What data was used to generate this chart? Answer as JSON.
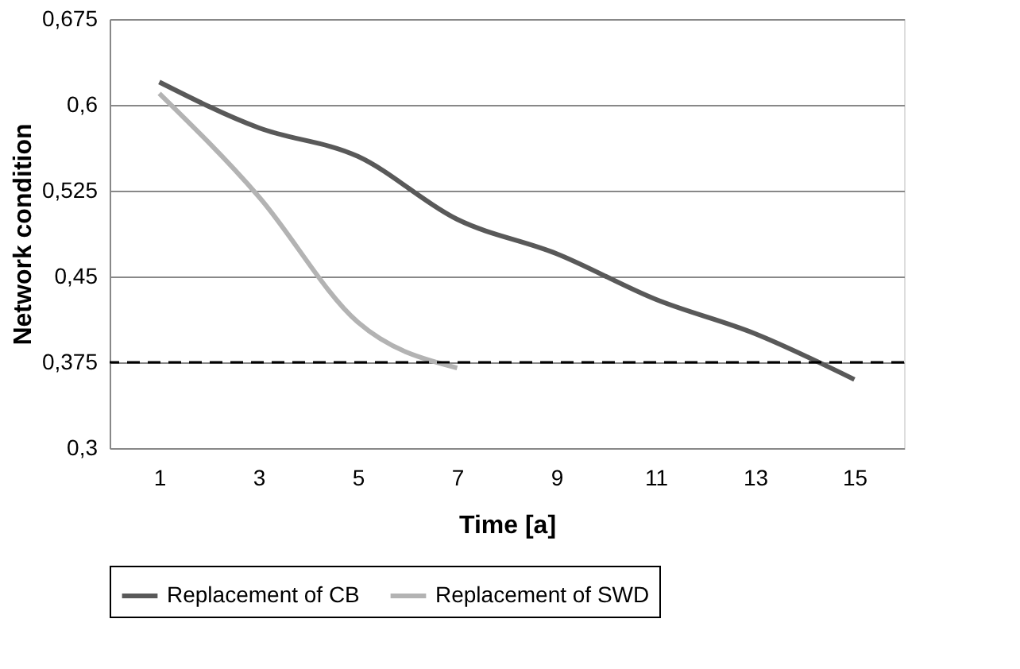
{
  "chart_data": {
    "type": "line",
    "xlabel": "Time [a]",
    "ylabel": "Network condition",
    "x": [
      1,
      3,
      5,
      7,
      9,
      11,
      13,
      15
    ],
    "series": [
      {
        "name": "Replacement of CB",
        "color": "#595959",
        "values": [
          0.62,
          0.58,
          0.555,
          0.5,
          0.47,
          0.43,
          0.4,
          0.36
        ]
      },
      {
        "name": "Replacement of SWD",
        "color": "#b3b3b3",
        "x": [
          1,
          3,
          5,
          7
        ],
        "values": [
          0.61,
          0.52,
          0.41,
          0.37
        ]
      }
    ],
    "xlim": [
      0,
      16
    ],
    "xticks": [
      1,
      3,
      5,
      7,
      9,
      11,
      13,
      15
    ],
    "ylim": [
      0.3,
      0.675
    ],
    "yticks": [
      {
        "value": 0.3,
        "label": "0,3"
      },
      {
        "value": 0.375,
        "label": "0,375"
      },
      {
        "value": 0.45,
        "label": "0,45"
      },
      {
        "value": 0.525,
        "label": "0,525"
      },
      {
        "value": 0.6,
        "label": "0,6"
      },
      {
        "value": 0.675,
        "label": "0,675"
      }
    ],
    "ref_lines": [
      {
        "axis": "y",
        "value": 0.375,
        "label": null,
        "color": "#000000",
        "line_style": "dashed"
      }
    ],
    "grid": "y",
    "legend": "bottom",
    "marker": "none",
    "line_style": "solid"
  }
}
